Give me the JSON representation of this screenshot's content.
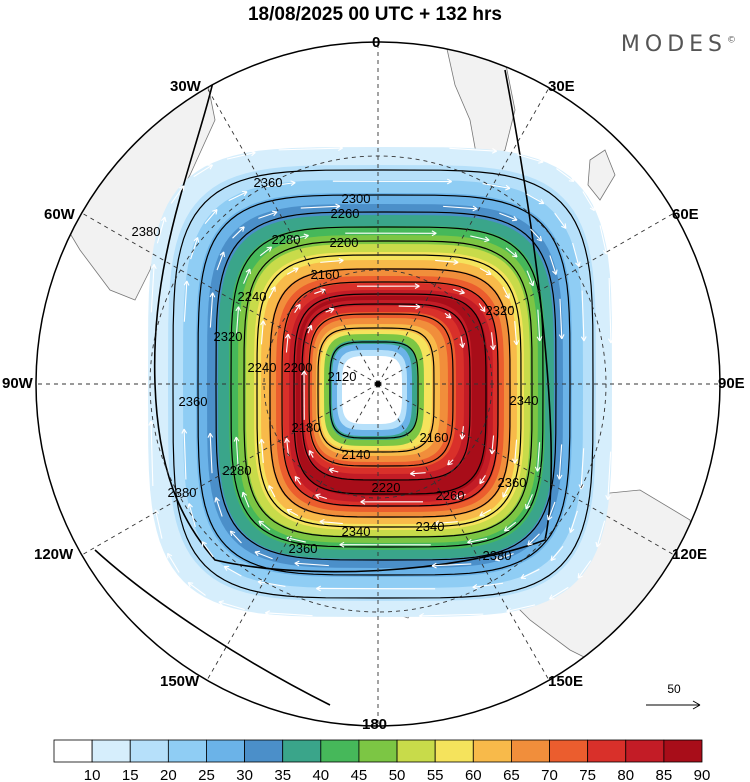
{
  "header": {
    "title": "18/08/2025  00 UTC  + 132 hrs",
    "brand": "MODES",
    "brand_mark": "©"
  },
  "map": {
    "projection": "south polar stereographic",
    "lon_labels": {
      "n0": "0",
      "n30e": "30E",
      "n60e": "60E",
      "n90e": "90E",
      "n120e": "120E",
      "n150e": "150E",
      "n180": "180",
      "n150w": "150W",
      "n120w": "120W",
      "n90w": "90W",
      "n60w": "60W",
      "n30w": "30W"
    },
    "contour_labels": [
      "2120",
      "2140",
      "2160",
      "2160",
      "2180",
      "2200",
      "2200",
      "2220",
      "2240",
      "2240",
      "2260",
      "2260",
      "2280",
      "2280",
      "2300",
      "2320",
      "2320",
      "2340",
      "2340",
      "2340",
      "2360",
      "2360",
      "2360",
      "2360",
      "2380",
      "2380",
      "2380"
    ],
    "wind_vector_reference": "50",
    "colors": {
      "land": "#f2f2f2",
      "ocean": "#ffffff",
      "core": "#a80d19",
      "arrows": "#ffffff",
      "contours": "#000000"
    }
  },
  "colorbar": {
    "labels": [
      "10",
      "15",
      "20",
      "25",
      "30",
      "35",
      "40",
      "45",
      "50",
      "55",
      "60",
      "65",
      "70",
      "75",
      "80",
      "85",
      "90"
    ],
    "colors": [
      "#ffffff",
      "#d6eefc",
      "#b6e0fa",
      "#8fcdf4",
      "#6bb3e8",
      "#4b8fc9",
      "#3aa58a",
      "#46b85a",
      "#7cc644",
      "#c8db4a",
      "#f5e35c",
      "#f8ba4a",
      "#f18e3b",
      "#eb5d2e",
      "#d9302a",
      "#c31c26",
      "#a80d19"
    ]
  }
}
